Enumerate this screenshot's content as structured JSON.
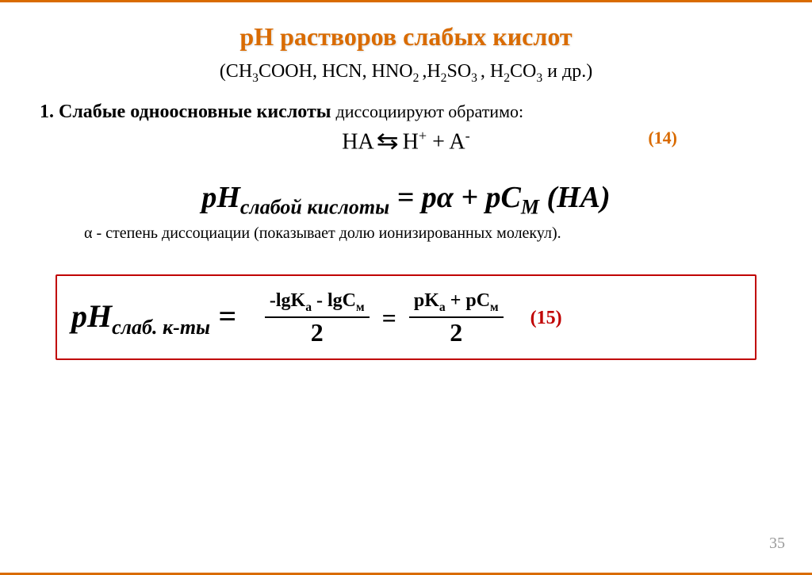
{
  "colors": {
    "accent": "#d96b00",
    "box_border": "#c00000",
    "label_red": "#c00000",
    "text": "#000000",
    "muted": "#8c8c8c",
    "pagenum": "#9a9a9a"
  },
  "fontsize": {
    "title": 32,
    "subtitle": 24,
    "body": 24,
    "section_tail": 22,
    "equation": 28,
    "eq_label": 22,
    "main_formula": 38,
    "main_formula_sub": 26,
    "alpha_note": 20,
    "box_lhs": 40,
    "box_lhs_sub": 26,
    "box_frac_num": 24,
    "box_frac_den": 32,
    "eq15": 24,
    "pagenum": 20
  },
  "title": "рН растворов слабых кислот",
  "subtitle_parts": {
    "open": "(CH",
    "s1": "3",
    "p2": "COOH, HCN, HNO",
    "s2": "2 ",
    "p3": ",H",
    "s3": "2",
    "p4": "SO",
    "s4": "3 ",
    "p5": ", H",
    "s5": "2",
    "p6": "CO",
    "s6": "3",
    "close": " и др.)"
  },
  "section": {
    "num": "1. ",
    "bold": "Слабые одноосновные кислоты ",
    "tail": "диссоциируют обратимо:"
  },
  "dissoc": {
    "lhs": "HA  ",
    "arrow": "⇆",
    "rhs": "  H",
    "sup1": "+",
    "plus": " + A",
    "sup2": "-",
    "label": "(14)"
  },
  "main_formula": {
    "pH": "pH",
    "sub": "слабой кислоты",
    "eq": " = p",
    "alpha": "α",
    "plus": " + pC",
    "M": "M",
    "tail": " (HA)"
  },
  "alpha_note": {
    "alpha": "α",
    "text": " - степень диссоциации (показывает долю ионизированных молекул)."
  },
  "boxed": {
    "lhs_pH": "pH",
    "lhs_sub": "слаб.  к-ты",
    "lhs_eq": " =",
    "frac1_num_a": "-lgK",
    "frac1_num_a_sub": "a",
    "frac1_num_b": " - lgC",
    "frac1_num_b_sub": "м",
    "frac1_den": "2",
    "mid_eq": "=",
    "frac2_num_a": "pK",
    "frac2_num_a_sub": "a",
    "frac2_num_b": " + pC",
    "frac2_num_b_sub": "м",
    "frac2_den": "2",
    "label": "(15)"
  },
  "pagenum": "35"
}
